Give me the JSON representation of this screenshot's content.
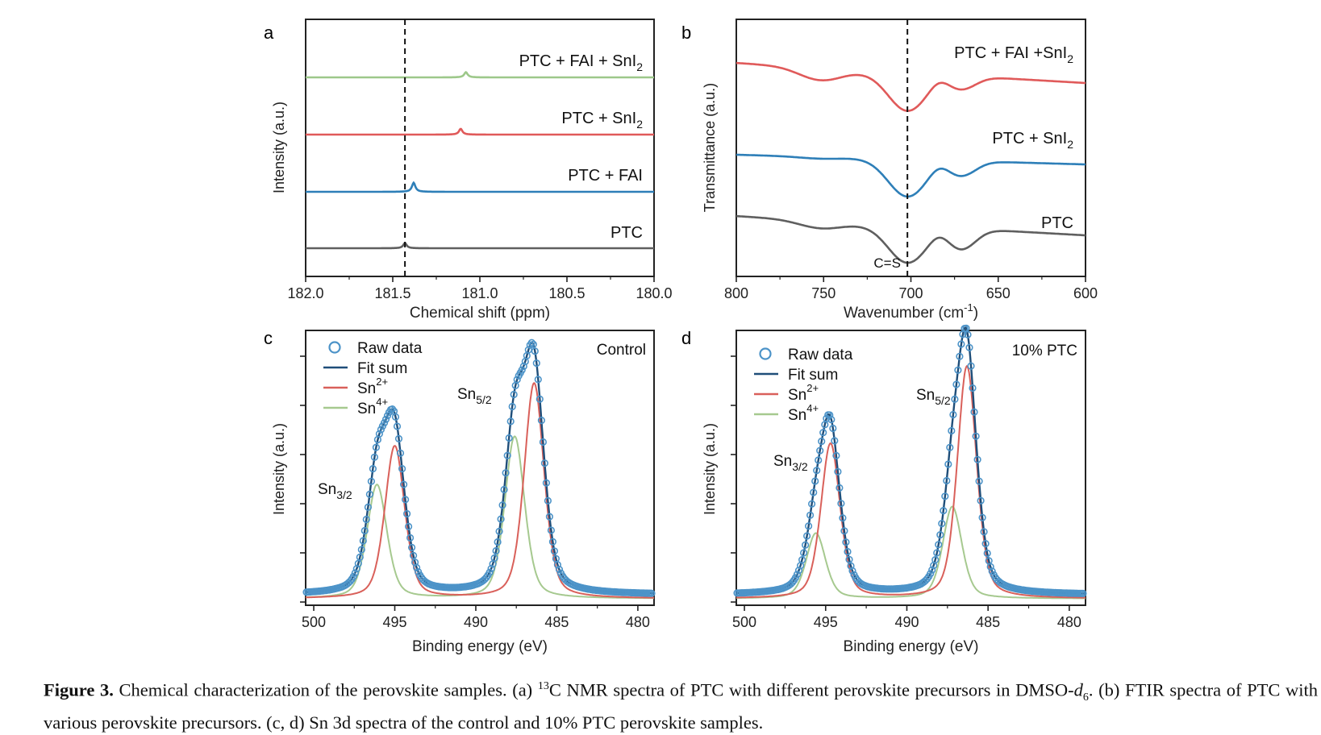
{
  "caption": {
    "figure_label": "Figure 3.",
    "part1": " Chemical characterization of the perovskite samples. (a) ",
    "sup13": "13",
    "part2": "C NMR spectra of PTC with different perovskite precursors in DMSO-",
    "dvar": "d",
    "dsub": "6",
    "part3": ". (b) FTIR spectra of PTC with various perovskite precursors. (c, d) Sn 3d spectra of the control and 10% PTC perovskite samples."
  },
  "colors": {
    "gray": "#5f5f5f",
    "blue": "#2e7fb8",
    "red": "#e05a5a",
    "green": "#9dc88a",
    "raw": "#4c93c8",
    "fitsum": "#1f4e79",
    "sn2": "#d9605a",
    "sn4": "#a6c98f"
  },
  "chart_data": [
    {
      "panel": "a",
      "type": "line",
      "xlabel": "Chemical shift (ppm)",
      "ylabel": "Intensity (a.u.)",
      "xlim": [
        182.0,
        180.0
      ],
      "x_ticks": [
        "182.0",
        "181.5",
        "181.0",
        "180.5",
        "180.0"
      ],
      "reference_line_x": 181.43,
      "series": [
        {
          "name": "PTC",
          "color": "#5f5f5f",
          "baseline": 0,
          "peak_x": 181.43,
          "peak_height": 0.08
        },
        {
          "name": "PTC + FAI",
          "color": "#2e7fb8",
          "baseline": 1,
          "peak_x": 181.38,
          "peak_height": 0.14
        },
        {
          "name": "PTC + SnI2",
          "color": "#e05a5a",
          "baseline": 2,
          "peak_x": 181.11,
          "peak_height": 0.09
        },
        {
          "name": "PTC + FAI + SnI2",
          "color": "#9dc88a",
          "baseline": 3,
          "peak_x": 181.08,
          "peak_height": 0.08
        }
      ],
      "labels": [
        {
          "base": "PTC",
          "sub": ""
        },
        {
          "base": "PTC + FAI",
          "sub": ""
        },
        {
          "base": "PTC + SnI",
          "sub": "2"
        },
        {
          "base": "PTC + FAI + SnI",
          "sub": "2"
        }
      ]
    },
    {
      "panel": "b",
      "type": "line",
      "xlabel_base": "Wavenumber (cm",
      "xlabel_sup": "-1",
      "xlabel_end": ")",
      "ylabel": "Transmittance (a.u.)",
      "xlim": [
        800,
        600
      ],
      "x_ticks": [
        "800",
        "750",
        "700",
        "650",
        "600"
      ],
      "reference_line_x": 702,
      "annotation": "C=S",
      "series": [
        {
          "name": "PTC",
          "color": "#5f5f5f"
        },
        {
          "name": "PTC + SnI2",
          "color": "#2e7fb8"
        },
        {
          "name": "PTC + FAI +SnI2",
          "color": "#e05a5a"
        }
      ],
      "labels": [
        {
          "base": "PTC",
          "sub": ""
        },
        {
          "base": "PTC + SnI",
          "sub": "2"
        },
        {
          "base": "PTC + FAI +SnI",
          "sub": "2"
        }
      ]
    },
    {
      "panel": "c",
      "type": "line",
      "title": "Control",
      "xlabel": "Binding energy (eV)",
      "ylabel": "Intensity (a.u.)",
      "xlim": [
        500.5,
        479.0
      ],
      "x_ticks": [
        "500",
        "495",
        "490",
        "485",
        "480"
      ],
      "legend": [
        {
          "key": "raw",
          "label": "Raw data",
          "sup": ""
        },
        {
          "key": "fitsum",
          "label": "Fit sum",
          "sup": ""
        },
        {
          "key": "sn2",
          "label": "Sn",
          "sup": "2+"
        },
        {
          "key": "sn4",
          "label": "Sn",
          "sup": "4+"
        }
      ],
      "peak_labels": [
        {
          "base": "Sn",
          "sub": "3/2"
        },
        {
          "base": "Sn",
          "sub": "5/2"
        }
      ],
      "components": {
        "sn2": [
          {
            "center": 495.0,
            "amp": 0.63
          },
          {
            "center": 486.4,
            "amp": 0.89
          }
        ],
        "sn4": [
          {
            "center": 496.1,
            "amp": 0.47
          },
          {
            "center": 487.6,
            "amp": 0.67
          }
        ]
      },
      "width_sigma": 0.62,
      "background": 0.02
    },
    {
      "panel": "d",
      "type": "line",
      "title": "10% PTC",
      "xlabel": "Binding energy (eV)",
      "ylabel": "Intensity (a.u.)",
      "xlim": [
        500.5,
        479.0
      ],
      "x_ticks": [
        "500",
        "495",
        "490",
        "485",
        "480"
      ],
      "legend": [
        {
          "key": "raw",
          "label": "Raw data",
          "sup": ""
        },
        {
          "key": "fitsum",
          "label": "Fit sum",
          "sup": ""
        },
        {
          "key": "sn2",
          "label": "Sn",
          "sup": "2+"
        },
        {
          "key": "sn4",
          "label": "Sn",
          "sup": "4+"
        }
      ],
      "peak_labels": [
        {
          "base": "Sn",
          "sub": "3/2"
        },
        {
          "base": "Sn",
          "sub": "5/2"
        }
      ],
      "components": {
        "sn2": [
          {
            "center": 494.7,
            "amp": 0.64
          },
          {
            "center": 486.3,
            "amp": 0.96
          }
        ],
        "sn4": [
          {
            "center": 495.6,
            "amp": 0.27
          },
          {
            "center": 487.2,
            "amp": 0.38
          }
        ]
      },
      "width_sigma": 0.6,
      "background": 0.02
    }
  ]
}
